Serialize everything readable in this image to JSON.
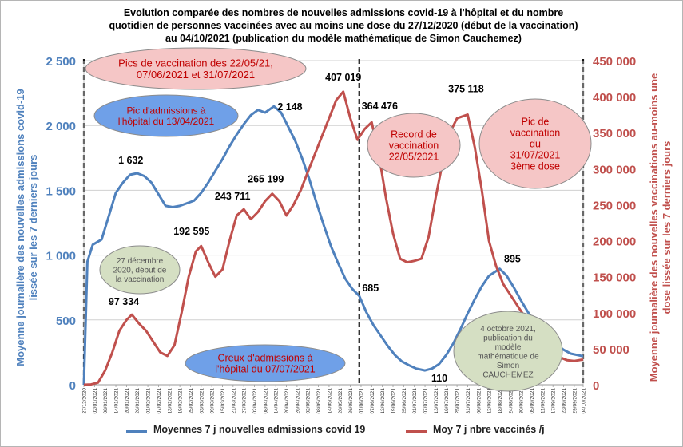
{
  "title_lines": [
    "Evolution comparée des nombres de nouvelles admissions covid-19 à l'hôpital et du nombre",
    "quotidien de personnes vaccinées avec au moins une dose du 27/12/2020 (début de la vaccination)",
    "au 04/10/2021 (publication du modèle mathématique de Simon Cauchemez)"
  ],
  "left_axis_label_lines": [
    "Moyenne journalière des nouvelles admissions covid-19",
    "lissée sur les 7 derniers jours"
  ],
  "right_axis_label_lines": [
    "Moyenne journalière des nouvelles vaccinations au-moins une",
    "dose lissée sur les 7 derniers jours"
  ],
  "legend": {
    "series1": "Moyennes 7 j  nouvelles admissions covid 19",
    "series2": "Moy 7 j nbre vaccinés /j"
  },
  "colors": {
    "series1": "#4f81bd",
    "series2": "#c0504d",
    "cloud_red_fill": "#f5c6c6",
    "cloud_blue_fill": "#6fa0e8",
    "cloud_green_fill": "#d5dfc3"
  },
  "callouts": [
    {
      "id": "cloud-vax-peaks",
      "style": "red",
      "lines": [
        "Pics de vaccination des 22/05/21,",
        "07/06/2021 et 31/07/2021"
      ]
    },
    {
      "id": "cloud-hosp-peak",
      "style": "blue",
      "lines": [
        "Pic d'admissions à",
        "l'hôpital du 13/04/2021"
      ]
    },
    {
      "id": "cloud-vax-record",
      "style": "red",
      "lines": [
        "Record de",
        "vaccination",
        "22/05/2021"
      ]
    },
    {
      "id": "cloud-vax-peak-3rd",
      "style": "red",
      "lines": [
        "Pic de",
        "vaccination",
        "du",
        "31/07/2021",
        "3ème dose"
      ]
    },
    {
      "id": "cloud-vax-start",
      "style": "green",
      "lines": [
        "27 décembre",
        "2020, début de",
        "la vaccination"
      ]
    },
    {
      "id": "cloud-hosp-trough",
      "style": "blue",
      "lines": [
        "Creux d'admissions à",
        "l'hôpital du 07/07/2021"
      ]
    },
    {
      "id": "cloud-model-pub",
      "style": "green",
      "lines": [
        "4 octobre 2021,",
        "publication du",
        "modèle",
        "mathématique de",
        "Simon",
        "CAUCHEMEZ"
      ]
    }
  ],
  "chart_data": {
    "type": "line",
    "x_start": "27/12/2020",
    "x_end": "04/10/2021",
    "x_tick_dates": [
      "27/12/2020",
      "02/01/2021",
      "08/01/2021",
      "14/01/2021",
      "20/01/2021",
      "26/01/2021",
      "01/02/2021",
      "07/02/2021",
      "13/02/2021",
      "19/02/2021",
      "25/02/2021",
      "03/03/2021",
      "09/03/2021",
      "15/03/2021",
      "21/03/2021",
      "27/03/2021",
      "02/04/2021",
      "08/04/2021",
      "14/04/2021",
      "20/04/2021",
      "26/04/2021",
      "02/05/2021",
      "08/05/2021",
      "14/05/2021",
      "20/05/2021",
      "26/05/2021",
      "01/06/2021",
      "07/06/2021",
      "13/06/2021",
      "19/06/2021",
      "25/06/2021",
      "01/07/2021",
      "07/07/2021",
      "13/07/2021",
      "19/07/2021",
      "25/07/2021",
      "31/07/2021",
      "06/08/2021",
      "12/08/2021",
      "18/08/2021",
      "24/08/2021",
      "30/08/2021",
      "05/09/2021",
      "11/09/2021",
      "17/09/2021",
      "23/09/2021",
      "29/09/2021",
      "04/10/2021"
    ],
    "y_left": {
      "label": "Moyenne journalière des nouvelles admissions covid-19 lissée sur les 7 derniers jours",
      "range": [
        0,
        2500
      ],
      "ticks": [
        "0",
        "500",
        "1 000",
        "1 500",
        "2 000",
        "2 500"
      ],
      "tick_values": [
        0,
        500,
        1000,
        1500,
        2000,
        2500
      ]
    },
    "y_right": {
      "label": "Moyenne journalière des nouvelles vaccinations au-moins une dose lissée sur les 7 derniers jours",
      "range": [
        0,
        450000
      ],
      "ticks": [
        "0",
        "50 000",
        "100 000",
        "150 000",
        "200 000",
        "250 000",
        "300 000",
        "350 000",
        "400 000",
        "450 000"
      ],
      "tick_values": [
        0,
        50000,
        100000,
        150000,
        200000,
        250000,
        300000,
        350000,
        400000,
        450000
      ]
    },
    "series": [
      {
        "name": "Moyennes 7 j  nouvelles admissions covid 19",
        "axis": "left",
        "points": [
          [
            "27/12/2020",
            0
          ],
          [
            "29/12/2020",
            950
          ],
          [
            "01/01/2021",
            1080
          ],
          [
            "06/01/2021",
            1120
          ],
          [
            "10/01/2021",
            1300
          ],
          [
            "14/01/2021",
            1480
          ],
          [
            "18/01/2021",
            1560
          ],
          [
            "22/01/2021",
            1620
          ],
          [
            "26/01/2021",
            1632
          ],
          [
            "30/01/2021",
            1610
          ],
          [
            "03/02/2021",
            1560
          ],
          [
            "07/02/2021",
            1470
          ],
          [
            "11/02/2021",
            1380
          ],
          [
            "15/02/2021",
            1370
          ],
          [
            "19/02/2021",
            1380
          ],
          [
            "23/02/2021",
            1400
          ],
          [
            "27/02/2021",
            1420
          ],
          [
            "03/03/2021",
            1480
          ],
          [
            "07/03/2021",
            1560
          ],
          [
            "11/03/2021",
            1650
          ],
          [
            "15/03/2021",
            1740
          ],
          [
            "19/03/2021",
            1840
          ],
          [
            "23/03/2021",
            1930
          ],
          [
            "27/03/2021",
            2010
          ],
          [
            "31/03/2021",
            2080
          ],
          [
            "04/04/2021",
            2120
          ],
          [
            "08/04/2021",
            2100
          ],
          [
            "13/04/2021",
            2148
          ],
          [
            "17/04/2021",
            2100
          ],
          [
            "21/04/2021",
            1990
          ],
          [
            "25/04/2021",
            1880
          ],
          [
            "29/04/2021",
            1740
          ],
          [
            "03/05/2021",
            1580
          ],
          [
            "07/05/2021",
            1400
          ],
          [
            "11/05/2021",
            1230
          ],
          [
            "15/05/2021",
            1070
          ],
          [
            "19/05/2021",
            940
          ],
          [
            "23/05/2021",
            820
          ],
          [
            "27/05/2021",
            740
          ],
          [
            "31/05/2021",
            685
          ],
          [
            "04/06/2021",
            560
          ],
          [
            "08/06/2021",
            460
          ],
          [
            "12/06/2021",
            380
          ],
          [
            "16/06/2021",
            300
          ],
          [
            "20/06/2021",
            230
          ],
          [
            "24/06/2021",
            180
          ],
          [
            "28/06/2021",
            150
          ],
          [
            "02/07/2021",
            125
          ],
          [
            "07/07/2021",
            110
          ],
          [
            "11/07/2021",
            125
          ],
          [
            "15/07/2021",
            160
          ],
          [
            "19/07/2021",
            230
          ],
          [
            "23/07/2021",
            320
          ],
          [
            "27/07/2021",
            430
          ],
          [
            "31/07/2021",
            550
          ],
          [
            "04/08/2021",
            660
          ],
          [
            "08/08/2021",
            760
          ],
          [
            "12/08/2021",
            840
          ],
          [
            "18/08/2021",
            895
          ],
          [
            "22/08/2021",
            840
          ],
          [
            "26/08/2021",
            750
          ],
          [
            "30/08/2021",
            650
          ],
          [
            "03/09/2021",
            560
          ],
          [
            "07/09/2021",
            480
          ],
          [
            "11/09/2021",
            410
          ],
          [
            "15/09/2021",
            360
          ],
          [
            "19/09/2021",
            310
          ],
          [
            "23/09/2021",
            270
          ],
          [
            "27/09/2021",
            240
          ],
          [
            "04/10/2021",
            220
          ]
        ]
      },
      {
        "name": "Moy 7 j nbre vaccinés /j",
        "axis": "right",
        "points": [
          [
            "27/12/2020",
            0
          ],
          [
            "31/12/2020",
            400
          ],
          [
            "04/01/2021",
            3000
          ],
          [
            "08/01/2021",
            20000
          ],
          [
            "12/01/2021",
            45000
          ],
          [
            "16/01/2021",
            75000
          ],
          [
            "20/01/2021",
            90000
          ],
          [
            "23/01/2021",
            97334
          ],
          [
            "27/01/2021",
            85000
          ],
          [
            "31/01/2021",
            75000
          ],
          [
            "04/02/2021",
            60000
          ],
          [
            "08/02/2021",
            45000
          ],
          [
            "12/02/2021",
            40000
          ],
          [
            "16/02/2021",
            55000
          ],
          [
            "20/02/2021",
            100000
          ],
          [
            "24/02/2021",
            150000
          ],
          [
            "28/02/2021",
            185000
          ],
          [
            "03/03/2021",
            192595
          ],
          [
            "07/03/2021",
            170000
          ],
          [
            "11/03/2021",
            150000
          ],
          [
            "15/03/2021",
            160000
          ],
          [
            "19/03/2021",
            200000
          ],
          [
            "23/03/2021",
            235000
          ],
          [
            "27/03/2021",
            243711
          ],
          [
            "31/03/2021",
            230000
          ],
          [
            "04/04/2021",
            240000
          ],
          [
            "08/04/2021",
            255000
          ],
          [
            "12/04/2021",
            265199
          ],
          [
            "16/04/2021",
            255000
          ],
          [
            "20/04/2021",
            235000
          ],
          [
            "24/04/2021",
            250000
          ],
          [
            "28/04/2021",
            270000
          ],
          [
            "02/05/2021",
            295000
          ],
          [
            "06/05/2021",
            320000
          ],
          [
            "10/05/2021",
            345000
          ],
          [
            "14/05/2021",
            370000
          ],
          [
            "18/05/2021",
            395000
          ],
          [
            "22/05/2021",
            407019
          ],
          [
            "26/05/2021",
            370000
          ],
          [
            "30/05/2021",
            340000
          ],
          [
            "03/06/2021",
            355000
          ],
          [
            "07/06/2021",
            364476
          ],
          [
            "11/06/2021",
            320000
          ],
          [
            "15/06/2021",
            260000
          ],
          [
            "19/06/2021",
            210000
          ],
          [
            "23/06/2021",
            175000
          ],
          [
            "27/06/2021",
            170000
          ],
          [
            "01/07/2021",
            172000
          ],
          [
            "05/07/2021",
            175000
          ],
          [
            "09/07/2021",
            205000
          ],
          [
            "13/07/2021",
            260000
          ],
          [
            "17/07/2021",
            310000
          ],
          [
            "21/07/2021",
            350000
          ],
          [
            "25/07/2021",
            370000
          ],
          [
            "31/07/2021",
            375118
          ],
          [
            "04/08/2021",
            330000
          ],
          [
            "08/08/2021",
            270000
          ],
          [
            "12/08/2021",
            200000
          ],
          [
            "16/08/2021",
            165000
          ],
          [
            "20/08/2021",
            140000
          ],
          [
            "24/08/2021",
            125000
          ],
          [
            "28/08/2021",
            110000
          ],
          [
            "01/09/2021",
            95000
          ],
          [
            "05/09/2021",
            80000
          ],
          [
            "09/09/2021",
            65000
          ],
          [
            "13/09/2021",
            55000
          ],
          [
            "17/09/2021",
            45000
          ],
          [
            "21/09/2021",
            38000
          ],
          [
            "25/09/2021",
            34000
          ],
          [
            "29/09/2021",
            33000
          ],
          [
            "04/10/2021",
            35000
          ]
        ]
      }
    ],
    "data_labels": [
      {
        "series": 0,
        "date": "26/01/2021",
        "text": "1 632"
      },
      {
        "series": 0,
        "date": "13/04/2021",
        "text": "2 148"
      },
      {
        "series": 0,
        "date": "31/05/2021",
        "text": "685"
      },
      {
        "series": 0,
        "date": "07/07/2021",
        "text": "110"
      },
      {
        "series": 0,
        "date": "18/08/2021",
        "text": "895"
      },
      {
        "series": 1,
        "date": "23/01/2021",
        "text": "97 334"
      },
      {
        "series": 1,
        "date": "03/03/2021",
        "text": "192 595"
      },
      {
        "series": 1,
        "date": "27/03/2021",
        "text": "243 711"
      },
      {
        "series": 1,
        "date": "12/04/2021",
        "text": "265 199"
      },
      {
        "series": 1,
        "date": "22/05/2021",
        "text": "407 019"
      },
      {
        "series": 1,
        "date": "07/06/2021",
        "text": "364 476"
      },
      {
        "series": 1,
        "date": "31/07/2021",
        "text": "375 118"
      }
    ],
    "reference_lines": [
      "27/12/2020",
      "31/05/2021",
      "04/10/2021"
    ],
    "grid": true,
    "legend_position": "bottom"
  }
}
